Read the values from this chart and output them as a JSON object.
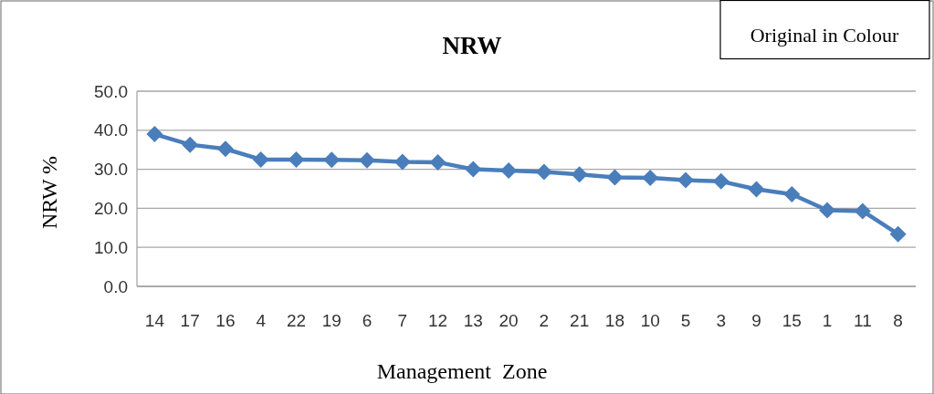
{
  "chart_data": {
    "type": "line",
    "title": "NRW",
    "xlabel": "Management  Zone",
    "ylabel": "NRW %",
    "annotations": [
      "Original in Colour"
    ],
    "categories": [
      "14",
      "17",
      "16",
      "4",
      "22",
      "19",
      "6",
      "7",
      "12",
      "13",
      "20",
      "2",
      "21",
      "18",
      "10",
      "5",
      "3",
      "9",
      "15",
      "1",
      "11",
      "8"
    ],
    "series": [
      {
        "color": "#4a7ebb",
        "values": [
          39.0,
          36.3,
          35.2,
          32.5,
          32.5,
          32.4,
          32.3,
          31.9,
          31.8,
          30.0,
          29.7,
          29.3,
          28.7,
          27.9,
          27.8,
          27.2,
          26.9,
          24.9,
          23.6,
          19.5,
          19.3,
          13.4
        ]
      }
    ],
    "ylim": [
      0,
      50
    ],
    "yticks": [
      {
        "value": 0,
        "label": "0.0"
      },
      {
        "value": 10,
        "label": "10.0"
      },
      {
        "value": 20,
        "label": "20.0"
      },
      {
        "value": 30,
        "label": "30.0"
      },
      {
        "value": 40,
        "label": "40.0"
      },
      {
        "value": 50,
        "label": "50.0"
      }
    ],
    "grid": "y",
    "marker": "diamond"
  }
}
